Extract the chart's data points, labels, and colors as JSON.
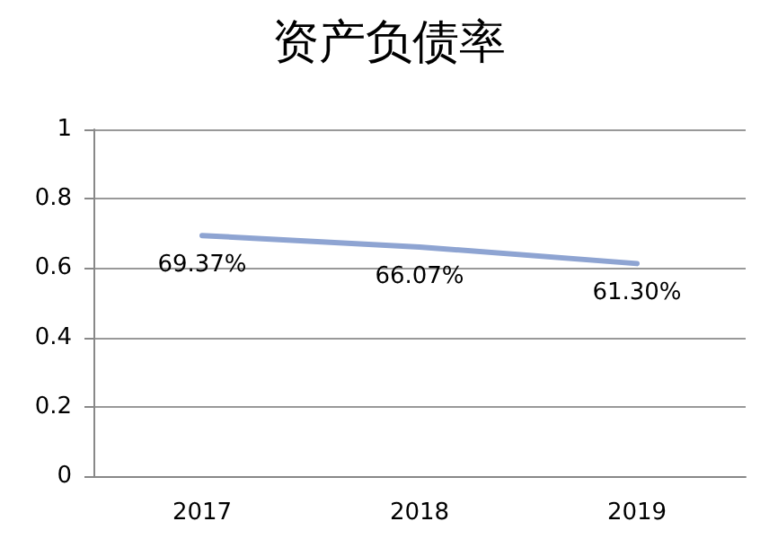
{
  "chart_data": {
    "type": "line",
    "title": "资产负债率",
    "categories": [
      "2017",
      "2018",
      "2019"
    ],
    "series": [
      {
        "color": "#8ea4d2",
        "values": [
          0.6937,
          0.6607,
          0.613
        ],
        "value_labels": [
          "69.37%",
          "66.07%",
          "61.30%"
        ]
      }
    ],
    "ylim": [
      0,
      1
    ],
    "yticks": [
      0,
      0.2,
      0.4,
      0.6,
      0.8,
      1
    ],
    "grid": "y",
    "marker": "none",
    "line_style": "solid"
  }
}
